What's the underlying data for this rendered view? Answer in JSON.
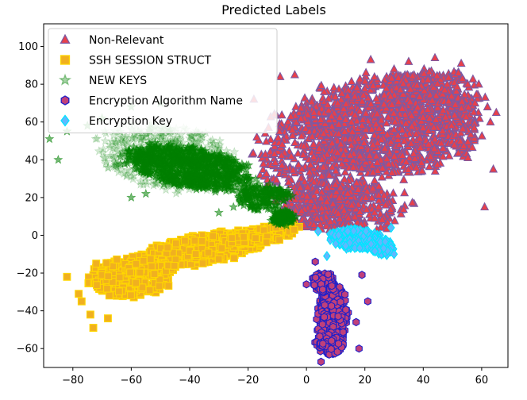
{
  "chart_data": {
    "type": "scatter",
    "title": "Predicted Labels",
    "xlabel": "",
    "ylabel": "",
    "xlim": [
      -90,
      69
    ],
    "ylim": [
      -70,
      112
    ],
    "xticks": [
      -80,
      -60,
      -40,
      -20,
      0,
      20,
      40,
      60
    ],
    "yticks": [
      -60,
      -40,
      -20,
      0,
      20,
      40,
      60,
      80,
      100
    ],
    "grid": false,
    "legend_position": "upper-left",
    "series": [
      {
        "name": "Non-Relevant",
        "marker": "triangle",
        "face_color": "#e8404a",
        "edge_color": "#7d5aa3",
        "clusters": [
          {
            "cx": 28,
            "cy": 58,
            "rx": 30,
            "ry": 26,
            "count": 950
          },
          {
            "cx": 5,
            "cy": 40,
            "rx": 22,
            "ry": 30,
            "count": 500
          },
          {
            "cx": 12,
            "cy": 15,
            "rx": 22,
            "ry": 14,
            "count": 350
          },
          {
            "cx": 42,
            "cy": 72,
            "rx": 18,
            "ry": 16,
            "count": 300
          }
        ],
        "outliers": [
          {
            "x": 65,
            "y": 65
          },
          {
            "x": 62,
            "y": 68
          },
          {
            "x": 59,
            "y": 80
          },
          {
            "x": 52,
            "y": 86
          },
          {
            "x": 44,
            "y": 94
          },
          {
            "x": 35,
            "y": 92
          },
          {
            "x": 30,
            "y": 88
          },
          {
            "x": 22,
            "y": 93
          },
          {
            "x": -9,
            "y": 84
          },
          {
            "x": -4,
            "y": 85
          },
          {
            "x": 63,
            "y": 60
          },
          {
            "x": 64,
            "y": 35
          },
          {
            "x": 61,
            "y": 15
          },
          {
            "x": -18,
            "y": 72
          },
          {
            "x": 53,
            "y": 91
          }
        ]
      },
      {
        "name": "SSH SESSION STRUCT",
        "marker": "square",
        "face_color": "#f0b020",
        "edge_color": "#ffd700",
        "clusters": [
          {
            "cx": -35,
            "cy": -7,
            "rx": 22,
            "ry": 7,
            "angle": 17,
            "count": 600
          },
          {
            "cx": -60,
            "cy": -22,
            "rx": 14,
            "ry": 10,
            "angle": 17,
            "count": 350
          },
          {
            "cx": -15,
            "cy": 0,
            "rx": 12,
            "ry": 4,
            "angle": 17,
            "count": 200
          }
        ],
        "outliers": [
          {
            "x": -82,
            "y": -22
          },
          {
            "x": -77,
            "y": -35
          },
          {
            "x": -74,
            "y": -42
          },
          {
            "x": -73,
            "y": -49
          },
          {
            "x": -68,
            "y": -44
          },
          {
            "x": -72,
            "y": -15
          },
          {
            "x": -78,
            "y": -31
          }
        ]
      },
      {
        "name": "NEW KEYS",
        "marker": "star",
        "face_color": "#008000",
        "edge_color": "#008000",
        "clusters": [
          {
            "cx": -40,
            "cy": 36,
            "rx": 22,
            "ry": 10,
            "angle": -17,
            "count": 800
          },
          {
            "cx": -48,
            "cy": 42,
            "rx": 24,
            "ry": 16,
            "angle": -17,
            "count": 450,
            "faint": true
          },
          {
            "cx": -15,
            "cy": 20,
            "rx": 9,
            "ry": 7,
            "count": 180
          },
          {
            "cx": -8,
            "cy": 9,
            "rx": 4,
            "ry": 4,
            "count": 120
          }
        ],
        "outliers": [
          {
            "x": -88,
            "y": 51
          },
          {
            "x": -82,
            "y": 55
          },
          {
            "x": -75,
            "y": 58
          },
          {
            "x": -70,
            "y": 62
          },
          {
            "x": -60,
            "y": 68
          },
          {
            "x": -50,
            "y": 70
          },
          {
            "x": -85,
            "y": 40
          },
          {
            "x": -60,
            "y": 20
          },
          {
            "x": -55,
            "y": 22
          },
          {
            "x": -30,
            "y": 12
          },
          {
            "x": -25,
            "y": 15
          }
        ]
      },
      {
        "name": "Encryption Algorithm Name",
        "marker": "hexagon",
        "face_color": "#c0407a",
        "edge_color": "#2020c8",
        "clusters": [
          {
            "cx": 9,
            "cy": -42,
            "rx": 5,
            "ry": 16,
            "count": 450
          },
          {
            "cx": 6,
            "cy": -25,
            "rx": 4,
            "ry": 5,
            "count": 80
          },
          {
            "cx": 8,
            "cy": -58,
            "rx": 5,
            "ry": 5,
            "count": 90
          }
        ],
        "outliers": [
          {
            "x": 0,
            "y": -26
          },
          {
            "x": 19,
            "y": -21
          },
          {
            "x": 21,
            "y": -35
          },
          {
            "x": 18,
            "y": -60
          },
          {
            "x": 5,
            "y": -67
          },
          {
            "x": 3,
            "y": -14
          },
          {
            "x": 17,
            "y": -46
          }
        ]
      },
      {
        "name": "Encryption Key",
        "marker": "diamond",
        "face_color": "#60b8ff",
        "edge_color": "#00e5ff",
        "clusters": [
          {
            "cx": 17,
            "cy": -2,
            "rx": 9,
            "ry": 5,
            "angle": -10,
            "count": 300
          },
          {
            "cx": 26,
            "cy": -6,
            "rx": 4,
            "ry": 4,
            "count": 80
          }
        ],
        "outliers": [
          {
            "x": 4,
            "y": 2
          },
          {
            "x": 29,
            "y": 4
          },
          {
            "x": 30,
            "y": -10
          },
          {
            "x": 7,
            "y": -11
          }
        ]
      }
    ]
  }
}
